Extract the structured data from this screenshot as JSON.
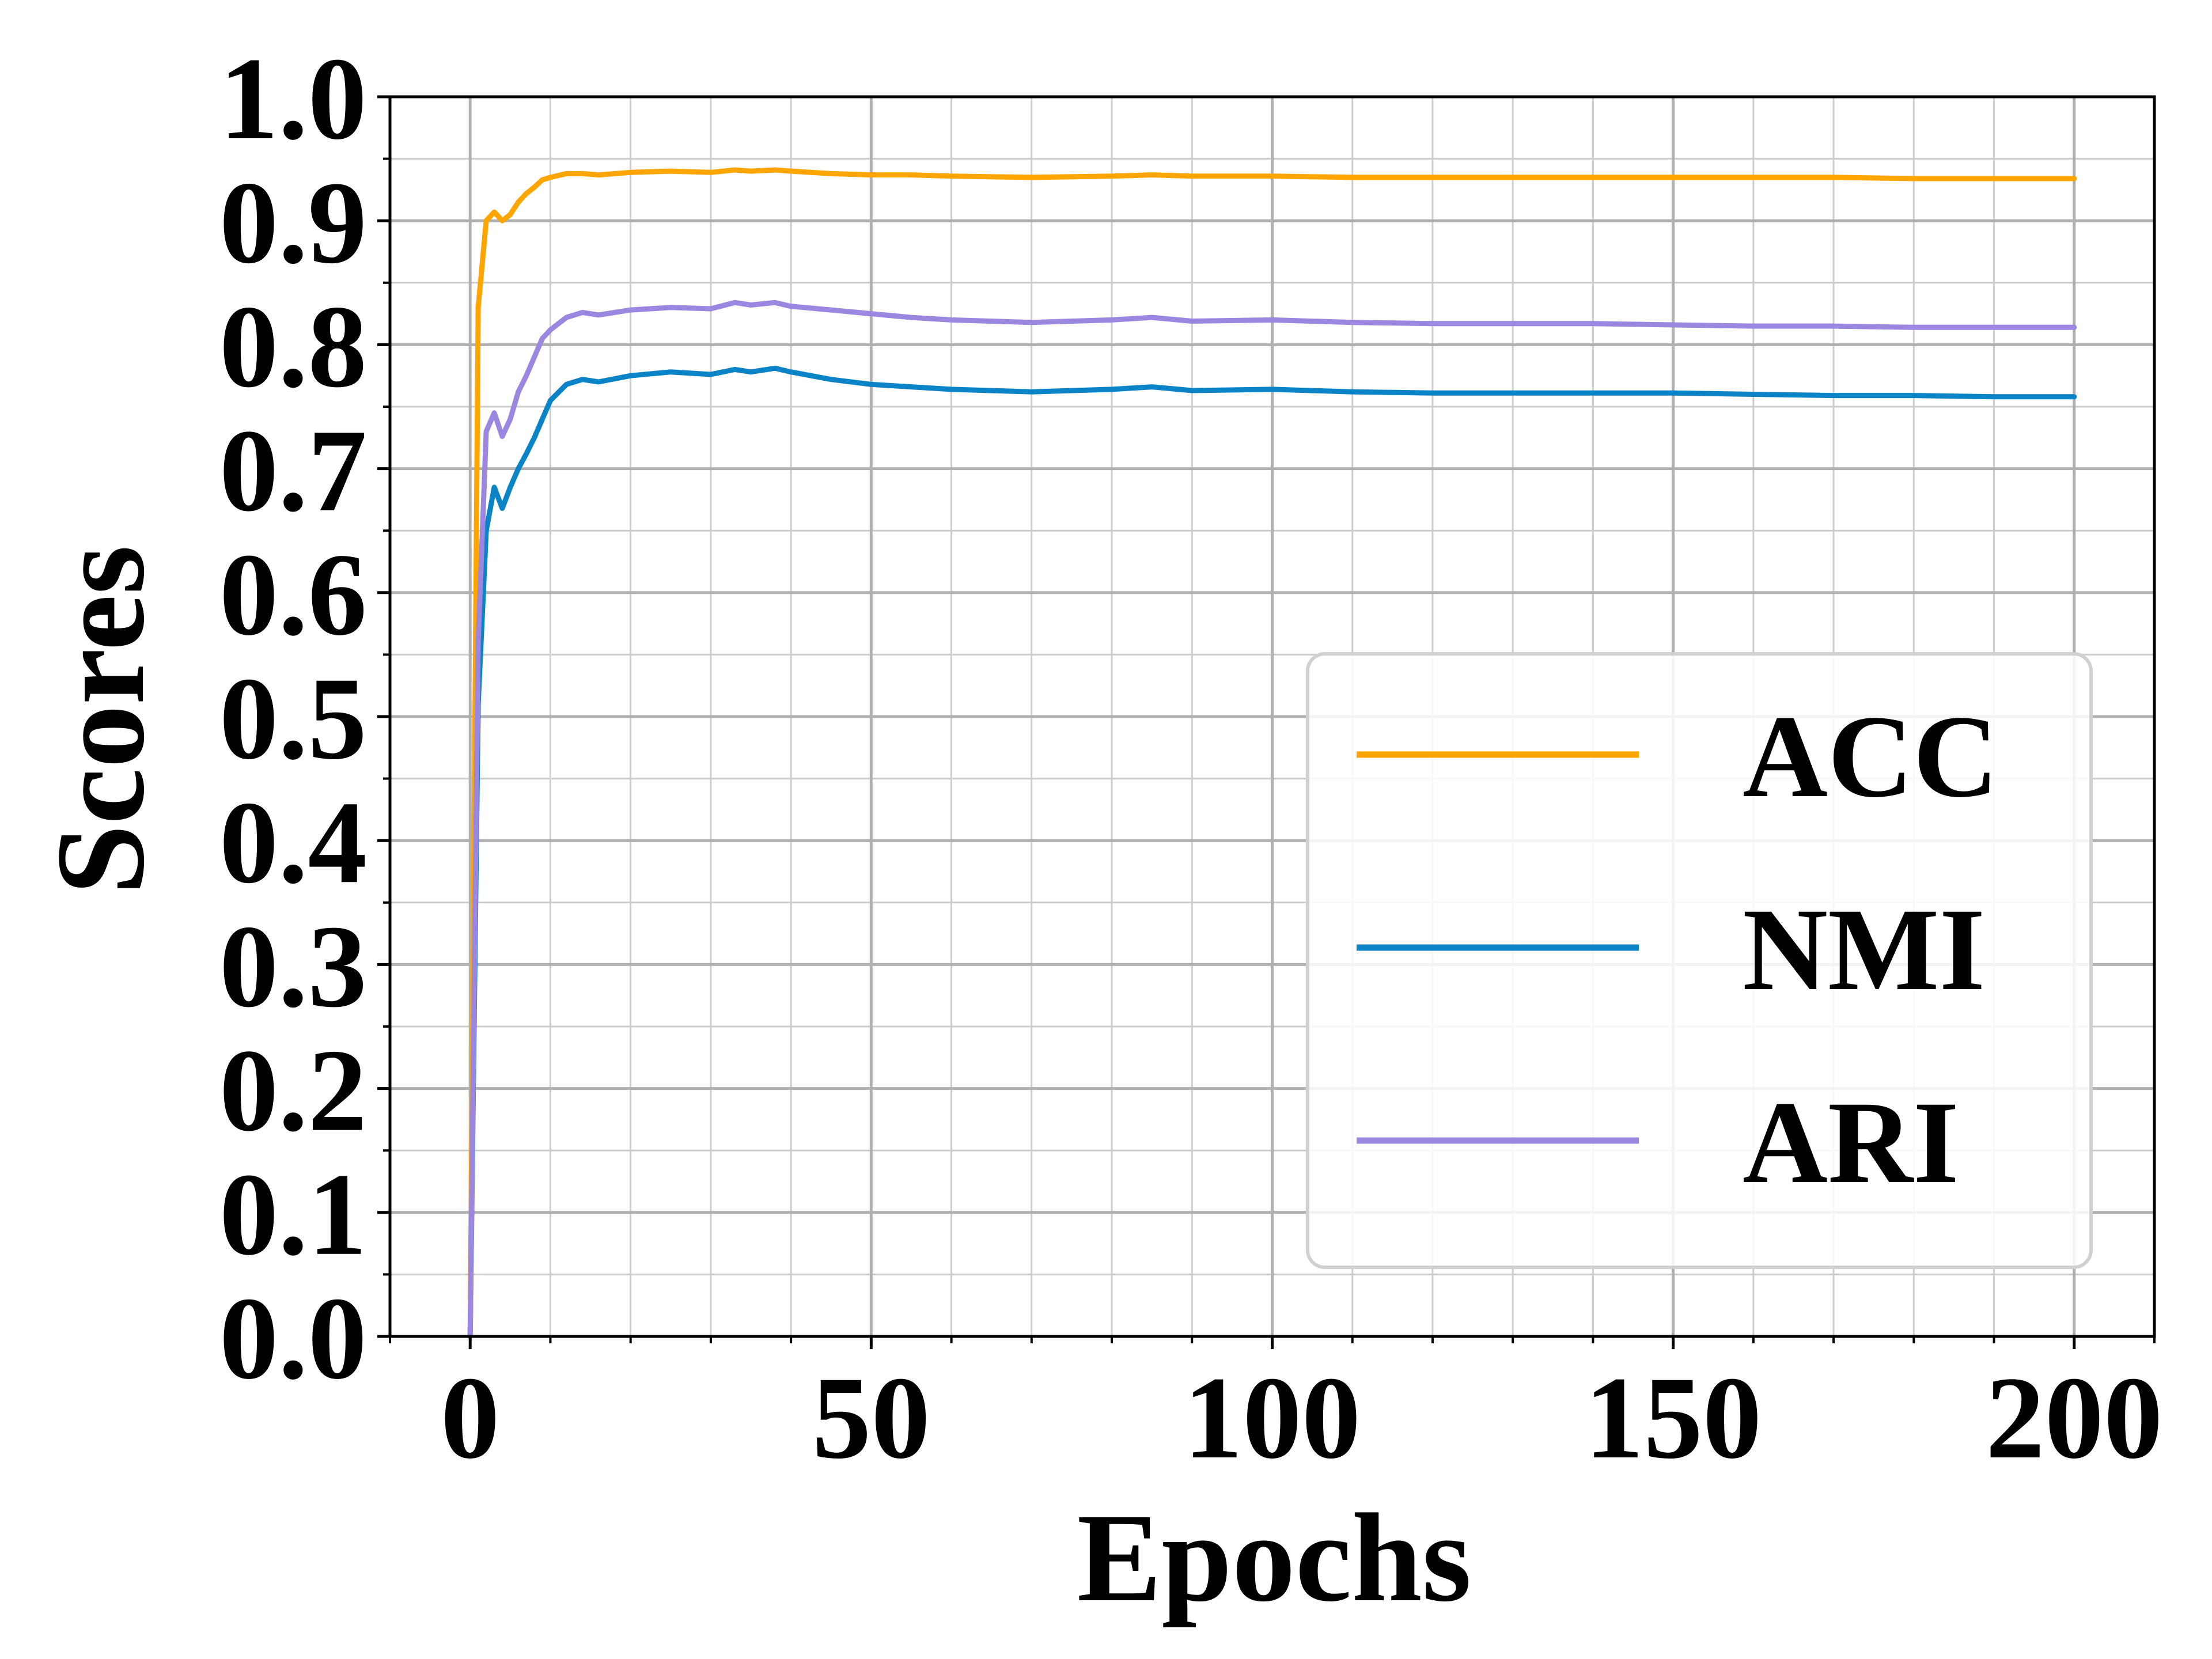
{
  "chart_data": {
    "type": "line",
    "xlabel": "Epochs",
    "ylabel": "Scores",
    "xlim": [
      -10,
      210
    ],
    "ylim": [
      0.0,
      1.0
    ],
    "xticks": [
      0,
      50,
      100,
      150,
      200
    ],
    "xtick_labels": [
      "0",
      "50",
      "100",
      "150",
      "200"
    ],
    "yticks": [
      0.0,
      0.1,
      0.2,
      0.3,
      0.4,
      0.5,
      0.6,
      0.7,
      0.8,
      0.9,
      1.0
    ],
    "ytick_labels": [
      "0.0",
      "0.1",
      "0.2",
      "0.3",
      "0.4",
      "0.5",
      "0.6",
      "0.7",
      "0.8",
      "0.9",
      "1.0"
    ],
    "grid": true,
    "legend_position": "lower-right",
    "x": [
      0,
      1,
      2,
      3,
      4,
      5,
      6,
      7,
      8,
      9,
      10,
      12,
      14,
      16,
      20,
      25,
      30,
      33,
      35,
      38,
      40,
      45,
      50,
      55,
      60,
      70,
      80,
      85,
      90,
      100,
      110,
      120,
      130,
      140,
      150,
      160,
      170,
      180,
      190,
      200
    ],
    "series": [
      {
        "name": "ACC",
        "color": "#FFA500",
        "values": [
          0.0,
          0.83,
          0.9,
          0.907,
          0.9,
          0.905,
          0.915,
          0.922,
          0.927,
          0.933,
          0.935,
          0.938,
          0.938,
          0.937,
          0.939,
          0.94,
          0.939,
          0.941,
          0.94,
          0.941,
          0.94,
          0.938,
          0.937,
          0.937,
          0.936,
          0.935,
          0.936,
          0.937,
          0.936,
          0.936,
          0.935,
          0.935,
          0.935,
          0.935,
          0.935,
          0.935,
          0.935,
          0.934,
          0.934,
          0.934
        ]
      },
      {
        "name": "NMI",
        "color": "#0A84C6",
        "values": [
          0.0,
          0.51,
          0.65,
          0.685,
          0.668,
          0.685,
          0.7,
          0.712,
          0.725,
          0.74,
          0.755,
          0.768,
          0.772,
          0.77,
          0.775,
          0.778,
          0.776,
          0.78,
          0.778,
          0.781,
          0.778,
          0.772,
          0.768,
          0.766,
          0.764,
          0.762,
          0.764,
          0.766,
          0.763,
          0.764,
          0.762,
          0.761,
          0.761,
          0.761,
          0.761,
          0.76,
          0.759,
          0.759,
          0.758,
          0.758
        ]
      },
      {
        "name": "ARI",
        "color": "#9B86E0",
        "values": [
          0.0,
          0.56,
          0.73,
          0.745,
          0.726,
          0.74,
          0.762,
          0.775,
          0.79,
          0.805,
          0.812,
          0.822,
          0.826,
          0.824,
          0.828,
          0.83,
          0.829,
          0.834,
          0.832,
          0.834,
          0.831,
          0.828,
          0.825,
          0.822,
          0.82,
          0.818,
          0.82,
          0.822,
          0.819,
          0.82,
          0.818,
          0.817,
          0.817,
          0.817,
          0.816,
          0.815,
          0.815,
          0.814,
          0.814,
          0.814
        ]
      }
    ]
  }
}
